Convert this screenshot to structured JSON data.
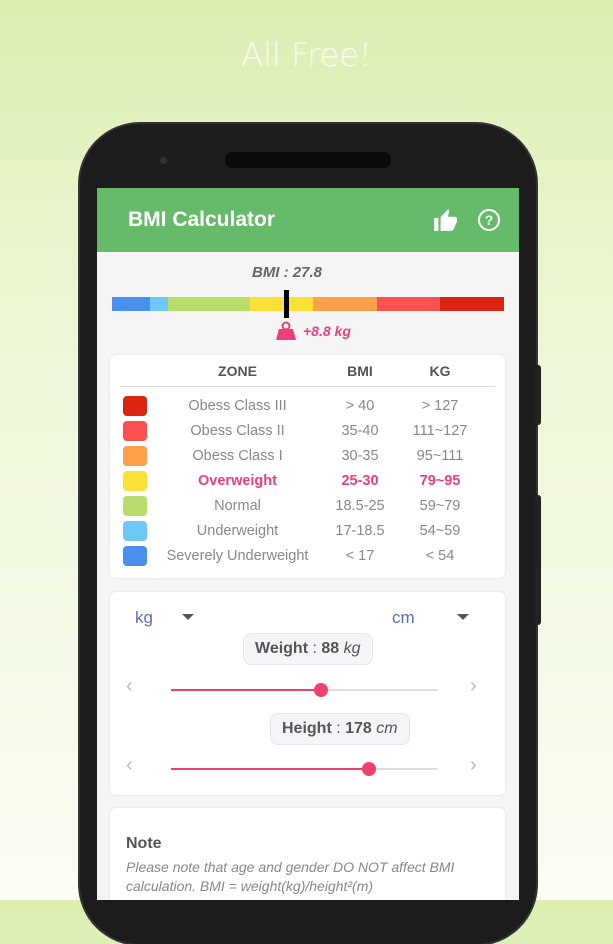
{
  "promo": {
    "title": "All Free!"
  },
  "appbar": {
    "title": "BMI Calculator",
    "icons": [
      "thumbs-up-icon",
      "help-circle-icon"
    ]
  },
  "gauge": {
    "bmi_label": "BMI : 27.8",
    "bmi": 27.8,
    "gain_label": "+8.8 kg",
    "segments": [
      "#4a8ef0",
      "#6ec8f5",
      "#b9dc6c",
      "#fbe135",
      "#fca04a",
      "#fb5150",
      "#dd2412"
    ]
  },
  "table": {
    "headers": {
      "zone": "ZONE",
      "bmi": "BMI",
      "kg": "KG"
    },
    "rows": [
      {
        "zone": "Obess Class III",
        "bmi": "> 40",
        "kg": "> 127",
        "color": "#dd2412"
      },
      {
        "zone": "Obess Class II",
        "bmi": "35-40",
        "kg": "111~127",
        "color": "#fb5150"
      },
      {
        "zone": "Obess Class I",
        "bmi": "30-35",
        "kg": "95~111",
        "color": "#fca04a"
      },
      {
        "zone": "Overweight",
        "bmi": "25-30",
        "kg": "79~95",
        "color": "#fbe135",
        "highlight": true
      },
      {
        "zone": "Normal",
        "bmi": "18.5-25",
        "kg": "59~79",
        "color": "#b9dc6c"
      },
      {
        "zone": "Underweight",
        "bmi": "17-18.5",
        "kg": "54~59",
        "color": "#6ec8f5"
      },
      {
        "zone": "Severely Underweight",
        "bmi": "< 17",
        "kg": "< 54",
        "color": "#4a8ef0"
      }
    ]
  },
  "inputs": {
    "weight_unit": "kg",
    "height_unit": "cm",
    "weight": {
      "label": "Weight",
      "value": "88",
      "unit": "kg",
      "fraction": 0.56
    },
    "height": {
      "label": "Height",
      "value": "178",
      "unit": "cm",
      "fraction": 0.74
    },
    "prev": "‹",
    "next": "›"
  },
  "note": {
    "title": "Note",
    "body": "Please note that age and gender DO NOT affect BMI calculation. BMI = weight(kg)/height²(m)"
  },
  "colors": {
    "primary": "#66bb6a",
    "accent": "#f0406e"
  }
}
